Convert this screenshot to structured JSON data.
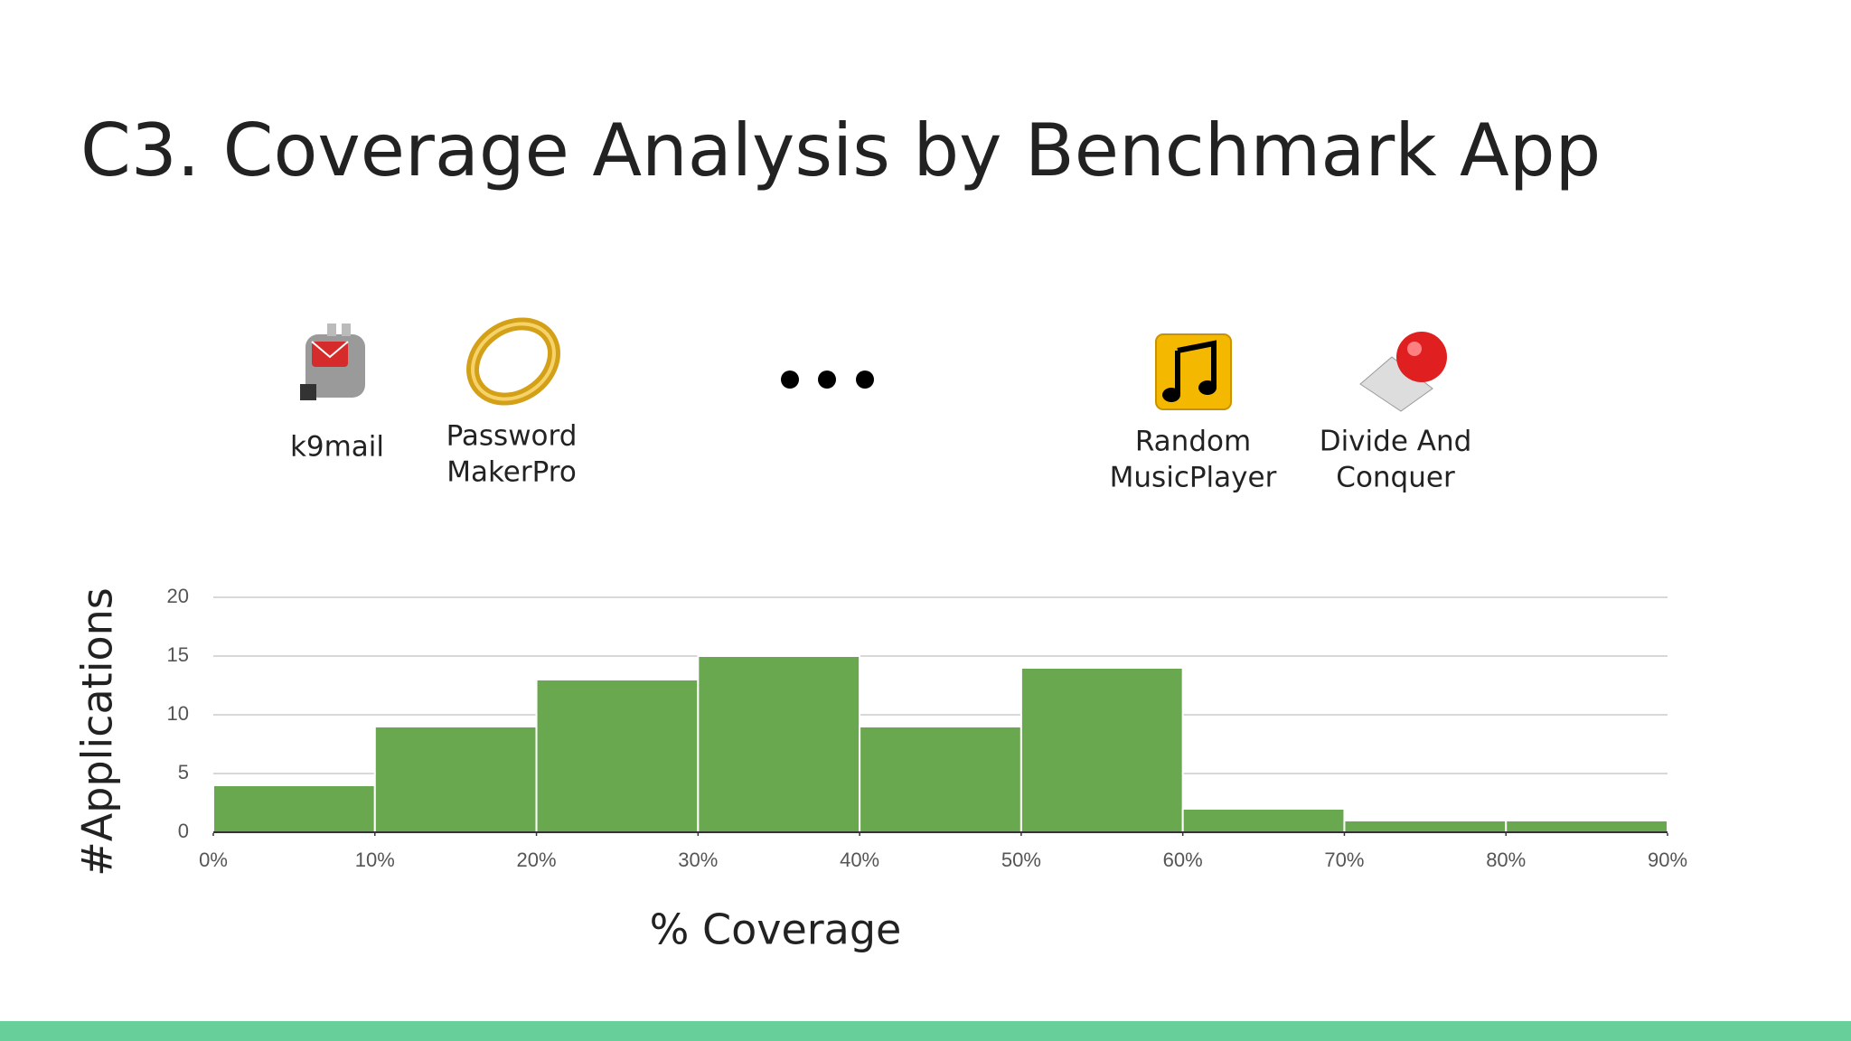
{
  "title": "C3. Coverage Analysis by Benchmark App",
  "apps": [
    {
      "label": [
        "k9mail"
      ]
    },
    {
      "label": [
        "Password",
        "MakerPro"
      ]
    },
    {
      "label": [
        "Random",
        "MusicPlayer"
      ]
    },
    {
      "label": [
        "Divide And",
        "Conquer"
      ]
    }
  ],
  "chart_data": {
    "type": "histogram",
    "x_label": "% Coverage",
    "y_label": "#Applications",
    "bins": [
      0,
      10,
      20,
      30,
      40,
      50,
      60,
      70,
      80,
      90
    ],
    "values": [
      4,
      9,
      13,
      15,
      9,
      14,
      2,
      1,
      1
    ],
    "color": "#6aa84f",
    "xlim": [
      0,
      90
    ],
    "xticks": [
      {
        "value": 0,
        "label": "0%"
      },
      {
        "value": 10,
        "label": "10%"
      },
      {
        "value": 20,
        "label": "20%"
      },
      {
        "value": 30,
        "label": "30%"
      },
      {
        "value": 40,
        "label": "40%"
      },
      {
        "value": 50,
        "label": "50%"
      },
      {
        "value": 60,
        "label": "60%"
      },
      {
        "value": 70,
        "label": "70%"
      },
      {
        "value": 80,
        "label": "80%"
      },
      {
        "value": 90,
        "label": "90%"
      }
    ],
    "ylim": [
      0,
      20
    ],
    "yticks": [
      0,
      5,
      10,
      15,
      20
    ],
    "grid": true
  }
}
